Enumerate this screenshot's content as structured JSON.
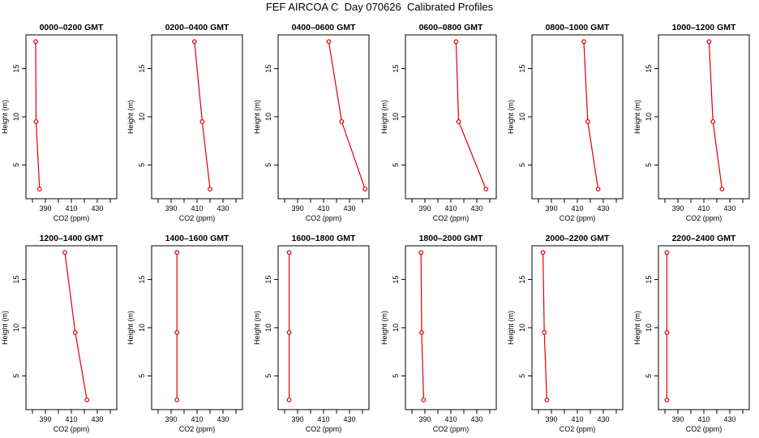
{
  "title": "FEF AIRCOA C  Day 070626  Calibrated Profiles",
  "colors": {
    "line": "#dd0000",
    "axis": "#000000"
  },
  "chart_data": [
    {
      "type": "line",
      "title": "0000–0200 GMT",
      "xlabel": "CO2 (ppm)",
      "ylabel": "Height (m)",
      "xlim": [
        375,
        445
      ],
      "ylim": [
        1.5,
        18.5
      ],
      "xticks": [
        390,
        410,
        430
      ],
      "yticks": [
        5,
        10,
        15
      ],
      "grid": false,
      "series": [
        {
          "x": [
            382.5,
            382.8,
            385.5
          ],
          "y": [
            17.8,
            9.5,
            2.5
          ]
        }
      ]
    },
    {
      "type": "line",
      "title": "0200–0400 GMT",
      "xlabel": "CO2 (ppm)",
      "ylabel": "Height (m)",
      "xlim": [
        375,
        445
      ],
      "ylim": [
        1.5,
        18.5
      ],
      "xticks": [
        390,
        410,
        430
      ],
      "yticks": [
        5,
        10,
        15
      ],
      "grid": false,
      "series": [
        {
          "x": [
            408,
            414,
            420
          ],
          "y": [
            17.8,
            9.5,
            2.5
          ]
        }
      ]
    },
    {
      "type": "line",
      "title": "0400–0600 GMT",
      "xlabel": "CO2 (ppm)",
      "ylabel": "Height (m)",
      "xlim": [
        375,
        445
      ],
      "ylim": [
        1.5,
        18.5
      ],
      "xticks": [
        390,
        410,
        430
      ],
      "yticks": [
        5,
        10,
        15
      ],
      "grid": false,
      "series": [
        {
          "x": [
            414,
            424,
            442
          ],
          "y": [
            17.8,
            9.5,
            2.5
          ]
        }
      ]
    },
    {
      "type": "line",
      "title": "0600–0800 GMT",
      "xlabel": "CO2 (ppm)",
      "ylabel": "Height (m)",
      "xlim": [
        375,
        445
      ],
      "ylim": [
        1.5,
        18.5
      ],
      "xticks": [
        390,
        410,
        430
      ],
      "yticks": [
        5,
        10,
        15
      ],
      "grid": false,
      "series": [
        {
          "x": [
            414,
            416,
            437
          ],
          "y": [
            17.8,
            9.5,
            2.5
          ]
        }
      ]
    },
    {
      "type": "line",
      "title": "0800–1000 GMT",
      "xlabel": "CO2 (ppm)",
      "ylabel": "Height (m)",
      "xlim": [
        375,
        445
      ],
      "ylim": [
        1.5,
        18.5
      ],
      "xticks": [
        390,
        410,
        430
      ],
      "yticks": [
        5,
        10,
        15
      ],
      "grid": false,
      "series": [
        {
          "x": [
            415,
            418,
            426
          ],
          "y": [
            17.8,
            9.5,
            2.5
          ]
        }
      ]
    },
    {
      "type": "line",
      "title": "1000–1200 GMT",
      "xlabel": "CO2 (ppm)",
      "ylabel": "Height (m)",
      "xlim": [
        375,
        445
      ],
      "ylim": [
        1.5,
        18.5
      ],
      "xticks": [
        390,
        410,
        430
      ],
      "yticks": [
        5,
        10,
        15
      ],
      "grid": false,
      "series": [
        {
          "x": [
            414,
            417,
            424
          ],
          "y": [
            17.8,
            9.5,
            2.5
          ]
        }
      ]
    },
    {
      "type": "line",
      "title": "1200–1400 GMT",
      "xlabel": "CO2 (ppm)",
      "ylabel": "Height (m)",
      "xlim": [
        375,
        445
      ],
      "ylim": [
        1.5,
        18.5
      ],
      "xticks": [
        390,
        410,
        430
      ],
      "yticks": [
        5,
        10,
        15
      ],
      "grid": false,
      "series": [
        {
          "x": [
            405,
            413,
            422
          ],
          "y": [
            17.8,
            9.5,
            2.5
          ]
        }
      ]
    },
    {
      "type": "line",
      "title": "1400–1600 GMT",
      "xlabel": "CO2 (ppm)",
      "ylabel": "Height (m)",
      "xlim": [
        375,
        445
      ],
      "ylim": [
        1.5,
        18.5
      ],
      "xticks": [
        390,
        410,
        430
      ],
      "yticks": [
        5,
        10,
        15
      ],
      "grid": false,
      "series": [
        {
          "x": [
            394.5,
            394.5,
            394.5
          ],
          "y": [
            17.8,
            9.5,
            2.5
          ]
        }
      ]
    },
    {
      "type": "line",
      "title": "1600–1800 GMT",
      "xlabel": "CO2 (ppm)",
      "ylabel": "Height (m)",
      "xlim": [
        375,
        445
      ],
      "ylim": [
        1.5,
        18.5
      ],
      "xticks": [
        390,
        410,
        430
      ],
      "yticks": [
        5,
        10,
        15
      ],
      "grid": false,
      "series": [
        {
          "x": [
            383.5,
            383.5,
            383.5
          ],
          "y": [
            17.8,
            9.5,
            2.5
          ]
        }
      ]
    },
    {
      "type": "line",
      "title": "1800–2000 GMT",
      "xlabel": "CO2 (ppm)",
      "ylabel": "Height (m)",
      "xlim": [
        375,
        445
      ],
      "ylim": [
        1.5,
        18.5
      ],
      "xticks": [
        390,
        410,
        430
      ],
      "yticks": [
        5,
        10,
        15
      ],
      "grid": false,
      "series": [
        {
          "x": [
            387,
            387.5,
            389
          ],
          "y": [
            17.8,
            9.5,
            2.5
          ]
        }
      ]
    },
    {
      "type": "line",
      "title": "2000–2200 GMT",
      "xlabel": "CO2 (ppm)",
      "ylabel": "Height (m)",
      "xlim": [
        375,
        445
      ],
      "ylim": [
        1.5,
        18.5
      ],
      "xticks": [
        390,
        410,
        430
      ],
      "yticks": [
        5,
        10,
        15
      ],
      "grid": false,
      "series": [
        {
          "x": [
            383.5,
            384.5,
            386.5
          ],
          "y": [
            17.8,
            9.5,
            2.5
          ]
        }
      ]
    },
    {
      "type": "line",
      "title": "2200–2400 GMT",
      "xlabel": "CO2 (ppm)",
      "ylabel": "Height (m)",
      "xlim": [
        375,
        445
      ],
      "ylim": [
        1.5,
        18.5
      ],
      "xticks": [
        390,
        410,
        430
      ],
      "yticks": [
        5,
        10,
        15
      ],
      "grid": false,
      "series": [
        {
          "x": [
            381.5,
            381.5,
            381.5
          ],
          "y": [
            17.8,
            9.5,
            2.5
          ]
        }
      ]
    }
  ]
}
